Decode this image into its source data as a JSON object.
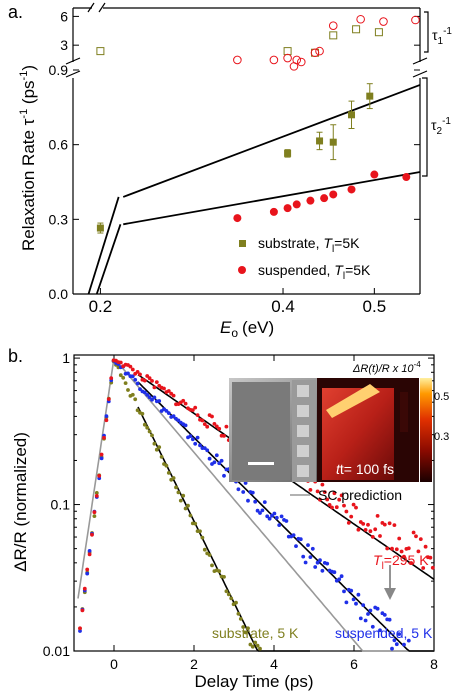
{
  "chart_data": [
    {
      "panel": "a.",
      "type": "scatter",
      "ylabel_main": "Relaxation Rate τ",
      "ylabel_sup": "-1",
      "ylabel_unit_open": "(ps",
      "ylabel_unit_sup": "-1",
      "ylabel_unit_close": ")",
      "xlabel_main": "E",
      "xlabel_sub": "o",
      "xlabel_unit": "(eV)",
      "xlim": [
        0.17,
        0.55
      ],
      "ylim_lower": [
        0.0,
        0.9
      ],
      "ylim_upper": [
        2,
        7
      ],
      "xticks": [
        "0.2",
        "0.4",
        "0.5"
      ],
      "xtick_values": [
        0.2,
        0.4,
        0.5
      ],
      "yticks_lower": [
        "0.0",
        "0.3",
        "0.6",
        "0.9"
      ],
      "ytick_values_lower": [
        0.0,
        0.3,
        0.6,
        0.9
      ],
      "yticks_upper": [
        "3",
        "6"
      ],
      "ytick_values_upper": [
        3,
        6
      ],
      "tau1_label": "τ",
      "tau1_sub": "1",
      "tau1_sup": "-1",
      "tau2_label": "τ",
      "tau2_sub": "2",
      "tau2_sup": "-1",
      "legend": [
        {
          "text": "substrate, ",
          "T": "T",
          "sub": "l",
          "tail": "=5K",
          "color": "#7f7f1f",
          "marker": "square"
        },
        {
          "text": "suspended, ",
          "T": "T",
          "sub": "l",
          "tail": "=5K",
          "color": "#e8141c",
          "marker": "circle"
        }
      ],
      "series": [
        {
          "name": "substrate",
          "color": "#7f7f1f",
          "marker": "square",
          "x": [
            0.2,
            0.405,
            0.44,
            0.455,
            0.475,
            0.495
          ],
          "y": [
            0.265,
            0.565,
            0.615,
            0.61,
            0.72,
            0.795
          ],
          "err": [
            0.02,
            0.015,
            0.035,
            0.07,
            0.055,
            0.05
          ]
        },
        {
          "name": "suspended",
          "color": "#e8141c",
          "marker": "circle",
          "x": [
            0.35,
            0.39,
            0.405,
            0.415,
            0.43,
            0.445,
            0.455,
            0.475,
            0.5,
            0.535
          ],
          "y": [
            0.305,
            0.33,
            0.345,
            0.36,
            0.375,
            0.385,
            0.4,
            0.42,
            0.48,
            0.47
          ]
        },
        {
          "name": "substrate tau1",
          "color": "#7f7f1f",
          "marker": "open-square",
          "x": [
            0.2,
            0.405,
            0.435,
            0.455,
            0.48,
            0.505
          ],
          "y": [
            2.6,
            2.6,
            2.5,
            3.8,
            4.4,
            4.1
          ]
        },
        {
          "name": "suspended tau1",
          "color": "#e8141c",
          "marker": "open-circle",
          "x": [
            0.35,
            0.39,
            0.405,
            0.412,
            0.415,
            0.42,
            0.435,
            0.44,
            0.455,
            0.485,
            0.51,
            0.545
          ],
          "y": [
            2.1,
            2.1,
            2.2,
            1.8,
            2.1,
            2.0,
            2.5,
            2.6,
            4.8,
            5.6,
            5.3,
            5.5
          ]
        }
      ],
      "fits": [
        {
          "x": [
            0.225,
            0.55
          ],
          "y": [
            0.39,
            0.84
          ]
        },
        {
          "x": [
            0.225,
            0.55
          ],
          "y": [
            0.28,
            0.49
          ]
        },
        {
          "x": [
            0.187,
            0.22
          ],
          "y": [
            0.0,
            0.39
          ]
        },
        {
          "x": [
            0.196,
            0.222
          ],
          "y": [
            0.0,
            0.28
          ]
        }
      ]
    },
    {
      "panel": "b.",
      "type": "line",
      "ylabel": "ΔR/R (normalized)",
      "xlabel": "Delay Time (ps)",
      "xlim": [
        -1,
        8
      ],
      "ylim": [
        0.01,
        1.05
      ],
      "yscale": "log",
      "xticks": [
        "0",
        "2",
        "4",
        "6",
        "8"
      ],
      "xtick_values": [
        0,
        2,
        4,
        6,
        8
      ],
      "yticks": [
        "0.01",
        "0.1",
        "1"
      ],
      "ytick_values": [
        0.01,
        0.1,
        1
      ],
      "legend_line": "SC prediction",
      "label_red": "=295 K",
      "label_red_T": "T",
      "label_red_sub": "l",
      "label_olive": "substrate, 5 K",
      "label_blue": "suspended, 5 K",
      "series": [
        {
          "name": "substrate, 5 K",
          "color": "#7f7f1f",
          "tau": 0.78
        },
        {
          "name": "suspended, 5 K",
          "color": "#1f2fe8",
          "tau": 1.6
        },
        {
          "name": "T_l=295 K",
          "color": "#e8141c",
          "tau": 2.3
        }
      ],
      "inset": {
        "colorbar_label": "ΔR(t)/R x 10",
        "colorbar_sup": "-4",
        "colorbar_ticks": [
          "0.5",
          "0.3"
        ],
        "time_label": "t= 100 fs"
      }
    }
  ]
}
